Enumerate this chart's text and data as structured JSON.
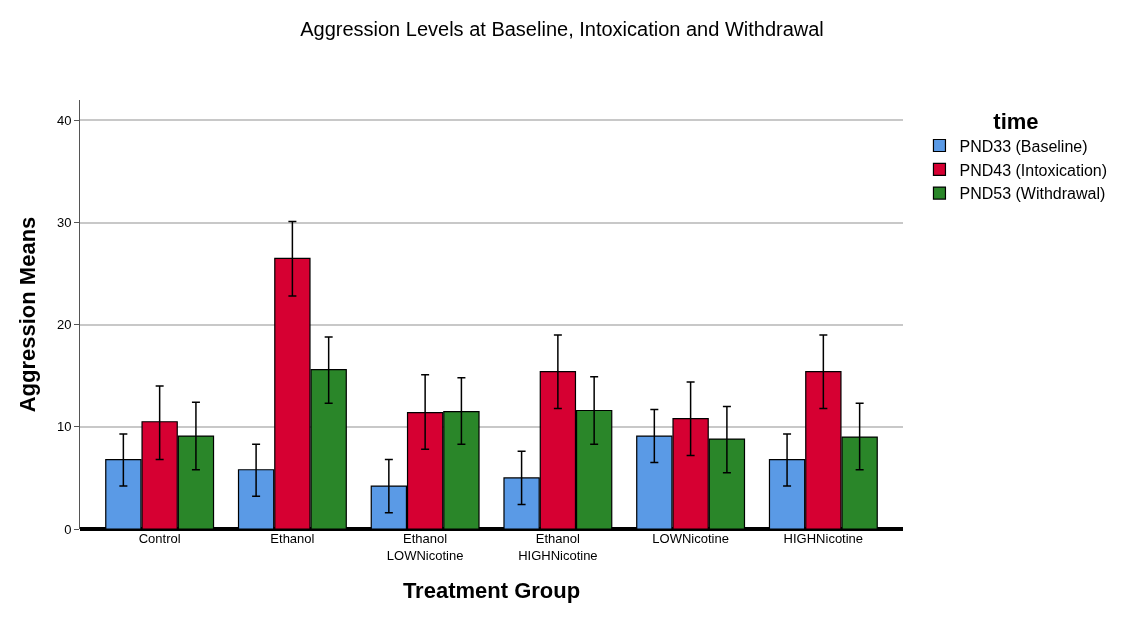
{
  "chart_data": {
    "type": "bar",
    "title": "Aggression Levels at Baseline, Intoxication and Withdrawal",
    "xlabel": "Treatment Group",
    "ylabel": "Aggression Means",
    "legend_title": "time",
    "categories": [
      "Control",
      "Ethanol",
      "Ethanol\nLOWNicotine",
      "Ethanol\nHIGHNicotine",
      "LOWNicotine",
      "HIGHNicotine"
    ],
    "series": [
      {
        "name": "PND33 (Baseline)",
        "color": "#5a9ae6",
        "values": [
          6.8,
          5.8,
          4.2,
          5.0,
          9.1,
          6.8
        ],
        "errors": [
          [
            4.2,
            9.3
          ],
          [
            3.2,
            8.3
          ],
          [
            1.6,
            6.8
          ],
          [
            2.4,
            7.6
          ],
          [
            6.5,
            11.7
          ],
          [
            4.2,
            9.3
          ]
        ]
      },
      {
        "name": "PND43 (Intoxication)",
        "color": "#d60032",
        "values": [
          10.5,
          26.5,
          11.4,
          15.4,
          10.8,
          15.4
        ],
        "errors": [
          [
            6.8,
            14.0
          ],
          [
            22.8,
            30.1
          ],
          [
            7.8,
            15.1
          ],
          [
            11.8,
            19.0
          ],
          [
            7.2,
            14.4
          ],
          [
            11.8,
            19.0
          ]
        ]
      },
      {
        "name": "PND53 (Withdrawal)",
        "color": "#2a8629",
        "values": [
          9.1,
          15.6,
          11.5,
          11.6,
          8.8,
          9.0
        ],
        "errors": [
          [
            5.8,
            12.4
          ],
          [
            12.3,
            18.8
          ],
          [
            8.3,
            14.8
          ],
          [
            8.3,
            14.9
          ],
          [
            5.5,
            12.0
          ],
          [
            5.8,
            12.3
          ]
        ]
      }
    ],
    "ylim": [
      0,
      42
    ],
    "yticks": [
      0,
      10,
      20,
      30,
      40
    ],
    "grid": "y",
    "legend": "top right"
  }
}
